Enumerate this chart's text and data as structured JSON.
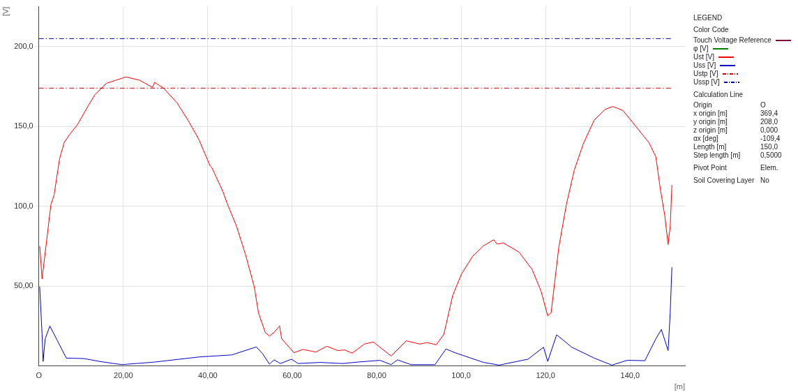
{
  "chart_data": {
    "type": "line",
    "xlabel": "[m]",
    "ylabel": "[V]",
    "legend_title": "LEGEND",
    "legend": "right",
    "grid": true,
    "marker": "none",
    "xlim": [
      0,
      153
    ],
    "ylim": [
      0,
      225
    ],
    "xticks": [
      {
        "value": 0,
        "label": "O"
      },
      {
        "value": 20,
        "label": "20,00"
      },
      {
        "value": 40,
        "label": "40,00"
      },
      {
        "value": 60,
        "label": "60,00"
      },
      {
        "value": 80,
        "label": "80,00"
      },
      {
        "value": 100,
        "label": "100,0"
      },
      {
        "value": 120,
        "label": "120,0"
      },
      {
        "value": 140,
        "label": "140,0"
      }
    ],
    "yticks": [
      {
        "value": 50,
        "label": "50,00"
      },
      {
        "value": 100,
        "label": "100,0"
      },
      {
        "value": 150,
        "label": "150,0"
      },
      {
        "value": 200,
        "label": "200,0"
      }
    ],
    "series": [
      {
        "name": "Touch Voltage Reference",
        "color": "#800040"
      },
      {
        "name": "φ [V]",
        "color": "#008000"
      },
      {
        "name": "Ust [V]",
        "color": "#ff0000",
        "x": [
          0.2,
          0.75,
          2.85,
          3.6,
          4.9,
          6,
          7.3,
          9.1,
          11.7,
          13.3,
          16,
          20.6,
          23.8,
          26.9,
          27.4,
          29.5,
          32.7,
          35.3,
          37.9,
          40.5,
          41,
          43.6,
          44.7,
          46.8,
          48.9,
          51,
          52,
          53.6,
          54.6,
          55.7,
          57,
          57.5,
          60.4,
          62.5,
          65.6,
          68.2,
          70.8,
          72.4,
          74.2,
          77.1,
          79.2,
          83.4,
          87,
          90.2,
          92,
          94.1,
          95.9,
          98,
          100.1,
          102.7,
          105.3,
          107.7,
          108.5,
          110,
          113.7,
          116.8,
          118.9,
          120.5,
          121.3,
          123.1,
          124.9,
          126.8,
          128.9,
          131.5,
          134.1,
          135.9,
          138.3,
          141.4,
          144.5,
          146.1,
          147.2,
          148.2,
          149,
          149.5,
          149.9
        ],
        "values": [
          75,
          54.5,
          101,
          107,
          129.7,
          140,
          145,
          151,
          163,
          170,
          177,
          181,
          179,
          174.5,
          177.6,
          174,
          164.8,
          154,
          141.7,
          125.5,
          124,
          109,
          101,
          87.5,
          70,
          49.6,
          33.3,
          21,
          18.7,
          21,
          25,
          17,
          8.3,
          10.3,
          8.7,
          12.3,
          9.6,
          10,
          8,
          13.7,
          15,
          6.2,
          15.7,
          13.7,
          14.6,
          13.3,
          19.8,
          44.2,
          57.7,
          68.6,
          75.3,
          79,
          76.3,
          77,
          71.3,
          60.4,
          46.9,
          31.3,
          33.3,
          74,
          101,
          122.8,
          139,
          154,
          160.7,
          162.5,
          160,
          149.9,
          139.7,
          130.9,
          110,
          94.3,
          76,
          87.5,
          113.3
        ]
      },
      {
        "name": "Uss [V]",
        "color": "#0000cc",
        "x": [
          0.2,
          0.75,
          1,
          1.5,
          2.6,
          4.4,
          6.5,
          10.7,
          14.4,
          19.6,
          27.4,
          37.9,
          45.7,
          51.5,
          53,
          54.6,
          55.7,
          57.2,
          59.8,
          61.4,
          66.6,
          71.9,
          75.5,
          80.8,
          83.4,
          84.9,
          88.1,
          93.8,
          96.4,
          98.5,
          105.3,
          109,
          115.8,
          119.5,
          120.5,
          122.6,
          126.2,
          131.5,
          135.7,
          139.3,
          143.5,
          146.1,
          147.4,
          149,
          149.5,
          149.9
        ],
        "values": [
          49.6,
          20,
          2.8,
          17,
          25,
          15.7,
          4.9,
          4.6,
          2.8,
          0.8,
          2.4,
          5.6,
          6.9,
          11.9,
          7.6,
          1.1,
          3.8,
          1.5,
          4.2,
          1.5,
          2.2,
          1.5,
          2.4,
          3.5,
          0.8,
          3.8,
          0.8,
          0.8,
          10.6,
          8.3,
          2.2,
          0.5,
          4.2,
          11.7,
          2.8,
          19.5,
          11.7,
          4.9,
          0.5,
          3.5,
          3.3,
          17,
          22.8,
          9.6,
          33.3,
          61.8
        ]
      }
    ],
    "ref_lines": [
      {
        "axis": "y",
        "value": 174,
        "label": "Ustp [V]",
        "color": "#cc0000",
        "line_style": "dashed"
      },
      {
        "axis": "y",
        "value": 205,
        "label": "Ussp [V]",
        "color": "#000099",
        "line_style": "dashed"
      }
    ],
    "annotations": [
      "Color Code",
      "Calculation Line",
      "Origin",
      "O",
      "x origin [m]",
      "369,4",
      "y origin [m]",
      "208,0",
      "z origin [m]",
      "0,000",
      "αx [deg]",
      "-109,4",
      "Length [m]",
      "150,0",
      "Step length [m]",
      "0,5000",
      "Pivot Point",
      "Elem.",
      "Soil Covering Layer",
      "No"
    ]
  }
}
